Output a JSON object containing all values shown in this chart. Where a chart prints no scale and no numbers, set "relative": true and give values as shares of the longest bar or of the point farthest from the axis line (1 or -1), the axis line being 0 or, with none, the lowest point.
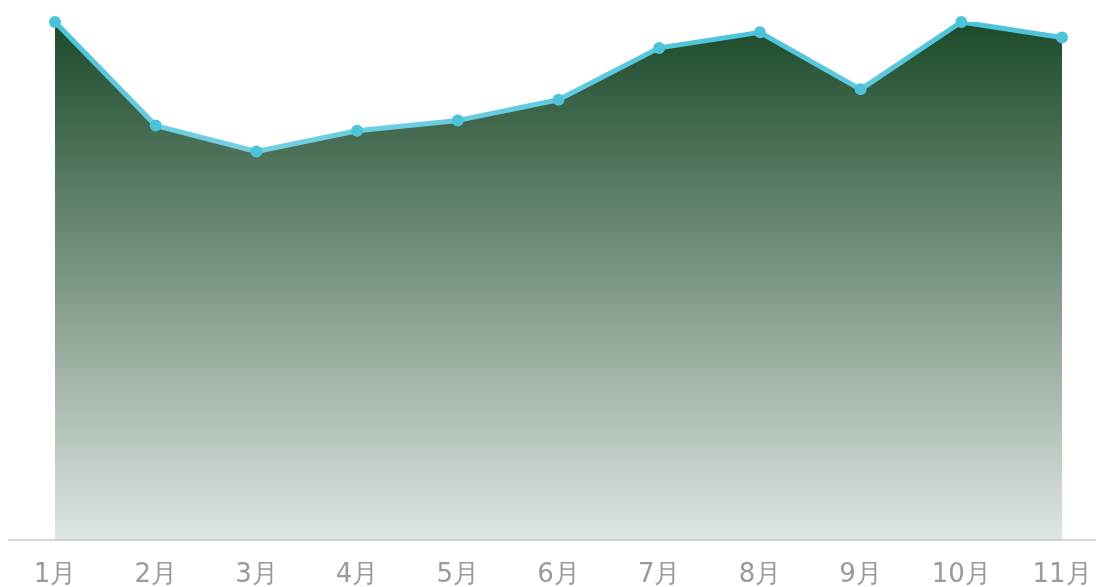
{
  "chart_data": {
    "type": "area",
    "relative": true,
    "marker": "circle",
    "categories": [
      "1月",
      "2月",
      "3月",
      "4月",
      "5月",
      "6月",
      "7月",
      "8月",
      "9月",
      "10月",
      "11月"
    ],
    "series": [
      {
        "color": "#4cc3d9",
        "values": [
          1,
          0.8,
          0.75,
          0.79,
          0.81,
          0.85,
          0.95,
          0.98,
          0.87,
          1,
          0.97
        ]
      }
    ]
  }
}
